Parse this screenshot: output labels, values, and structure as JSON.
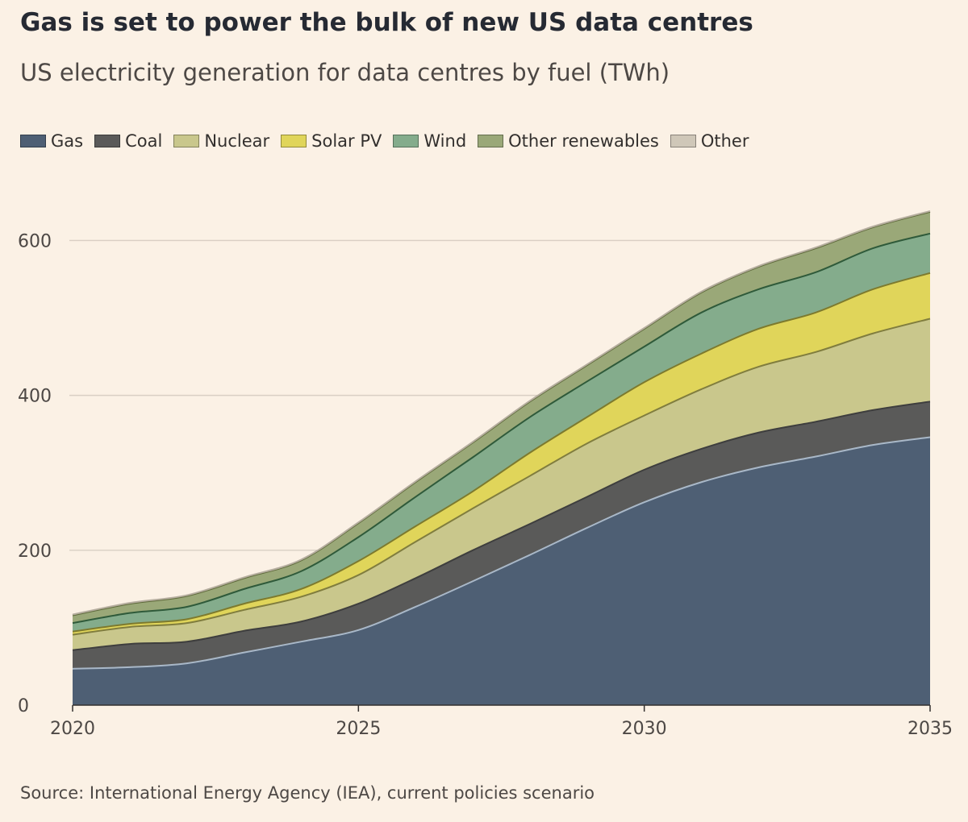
{
  "title": "Gas is set to power the bulk of new US data centres",
  "subtitle": "US electricity generation for data centres by fuel (TWh)",
  "source": "Source: International Energy Agency (IEA), current policies scenario",
  "chart_data": {
    "type": "area",
    "stacked": true,
    "x": [
      2020,
      2021,
      2022,
      2023,
      2024,
      2025,
      2026,
      2027,
      2028,
      2029,
      2030,
      2031,
      2032,
      2033,
      2034,
      2035
    ],
    "series": [
      {
        "name": "Gas",
        "color": "#4e5f74",
        "line_color": "#a9b8c8",
        "values": [
          47,
          49,
          54,
          68,
          82,
          97,
          127,
          160,
          194,
          229,
          262,
          288,
          307,
          321,
          336,
          346
        ]
      },
      {
        "name": "Coal",
        "color": "#5a5a59",
        "line_color": "#3e3e3e",
        "values": [
          24,
          30,
          28,
          28,
          26,
          34,
          37,
          40,
          40,
          40,
          42,
          43,
          45,
          45,
          45,
          46
        ]
      },
      {
        "name": "Nuclear",
        "color": "#c9c78c",
        "line_color": "#807d3e",
        "values": [
          20,
          22,
          24,
          27,
          32,
          37,
          47,
          54,
          62,
          69,
          70,
          77,
          85,
          90,
          99,
          107
        ]
      },
      {
        "name": "Solar PV",
        "color": "#e0d55a",
        "line_color": "#7d7a2e",
        "values": [
          4,
          4,
          5,
          8,
          10,
          18,
          20,
          22,
          30,
          34,
          43,
          46,
          49,
          51,
          57,
          59
        ]
      },
      {
        "name": "Wind",
        "color": "#84ac8c",
        "line_color": "#2f5a3a",
        "values": [
          11,
          14,
          16,
          19,
          23,
          31,
          38,
          44,
          46,
          46,
          46,
          53,
          51,
          52,
          53,
          51
        ]
      },
      {
        "name": "Other renewables",
        "color": "#9aa878",
        "line_color": "#5e6a3a",
        "values": [
          10,
          12,
          14,
          14,
          14,
          18,
          19,
          19,
          20,
          21,
          23,
          26,
          29,
          31,
          27,
          28
        ]
      },
      {
        "name": "Other",
        "color": "#cfc7b8",
        "line_color": "#b5ad9e",
        "values": [
          1,
          1,
          1,
          1,
          1,
          1,
          1,
          1,
          1,
          1,
          1,
          1,
          1,
          1,
          1,
          1
        ]
      }
    ],
    "x_ticks": [
      2020,
      2025,
      2030,
      2035
    ],
    "y_ticks": [
      0,
      200,
      400,
      600
    ],
    "xlim": [
      2020,
      2035
    ],
    "ylim": [
      0,
      640
    ],
    "grid": "horizontal",
    "legend": "top-left"
  }
}
